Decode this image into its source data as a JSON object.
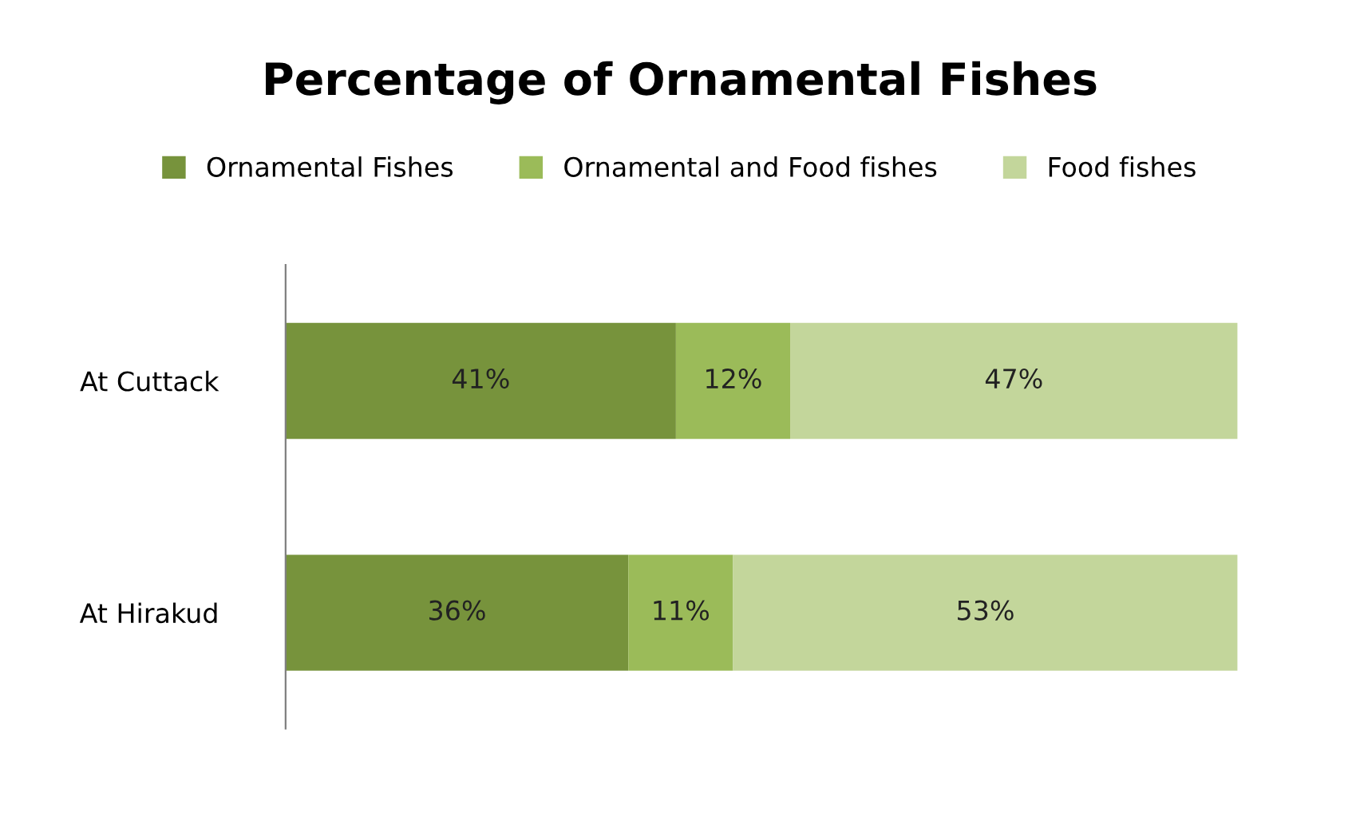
{
  "chart_data": {
    "type": "bar",
    "orientation": "horizontal",
    "stacked": true,
    "title": "Percentage of Ornamental Fishes",
    "categories": [
      "At Cuttack",
      "At Hirakud"
    ],
    "series": [
      {
        "name": "Ornamental Fishes",
        "color": "#77933c",
        "values": [
          41,
          36
        ],
        "value_labels": [
          "41%",
          "36%"
        ]
      },
      {
        "name": "Ornamental and Food fishes",
        "color": "#9bbb59",
        "values": [
          12,
          11
        ],
        "value_labels": [
          "12%",
          "11%"
        ]
      },
      {
        "name": "Food fishes",
        "color": "#c3d69b",
        "values": [
          47,
          53
        ],
        "value_labels": [
          "47%",
          "53%"
        ]
      }
    ],
    "xlim": [
      0,
      100
    ],
    "tick_labels": "y",
    "legend": "top",
    "grid": false
  }
}
